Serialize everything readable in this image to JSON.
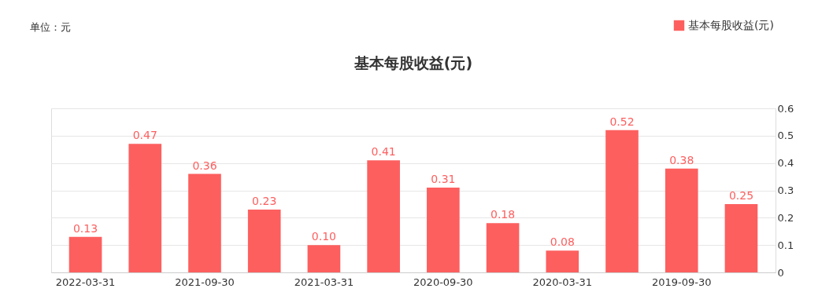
{
  "chart_data": {
    "type": "bar",
    "title": "基本每股收益(元)",
    "categories": [
      "2022-03-31",
      null,
      "2021-09-30",
      null,
      "2021-03-31",
      null,
      "2020-09-30",
      null,
      "2020-03-31",
      null,
      "2019-09-30",
      null
    ],
    "series": [
      {
        "name": "基本每股收益(元)",
        "color": "#fd5f5f",
        "values": [
          0.13,
          0.47,
          0.36,
          0.23,
          0.1,
          0.41,
          0.31,
          0.18,
          0.08,
          0.52,
          0.38,
          0.25
        ],
        "value_labels": [
          "0.13",
          "0.47",
          "0.36",
          "0.23",
          "0.10",
          "0.41",
          "0.31",
          "0.18",
          "0.08",
          "0.52",
          "0.38",
          "0.25"
        ]
      }
    ],
    "ylim": [
      0,
      0.6
    ],
    "yticks": [
      0,
      0.1,
      0.2,
      0.3,
      0.4,
      0.5,
      0.6
    ],
    "grid": "y",
    "legend": "top right",
    "annotations": [
      "单位：元"
    ]
  }
}
